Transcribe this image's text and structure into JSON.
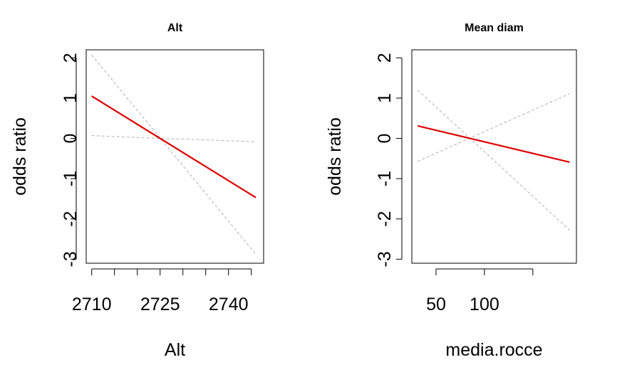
{
  "chart_data": [
    {
      "type": "line",
      "title": "Alt",
      "xlabel": "Alt",
      "ylabel": "odds ratio",
      "xlim": [
        2708.8,
        2747.7
      ],
      "ylim": [
        -3.1,
        2.2
      ],
      "x_ticks": [
        2710,
        2715,
        2720,
        2725,
        2730,
        2735,
        2740,
        2745
      ],
      "x_tick_labels": [
        "2710",
        "",
        "",
        "2725",
        "",
        "",
        "2740",
        ""
      ],
      "y_ticks": [
        2,
        1,
        0,
        -1,
        -2,
        -3
      ],
      "y_tick_labels": [
        "2",
        "1",
        "0",
        "-1",
        "-2",
        "-3"
      ],
      "grid": false,
      "series": [
        {
          "role": "estimate",
          "color": "#dd0000",
          "style": "solid",
          "x": [
            2710,
            2746
          ],
          "y": [
            1.05,
            -1.47
          ]
        },
        {
          "role": "upper-ci",
          "color": "#b0b0b0",
          "style": "dashed",
          "x": [
            2710,
            2746
          ],
          "y": [
            2.07,
            -2.88
          ]
        },
        {
          "role": "lower-ci",
          "color": "#b0b0b0",
          "style": "dashed",
          "x": [
            2710,
            2725,
            2746
          ],
          "y": [
            0.07,
            0.0,
            -0.08
          ]
        }
      ]
    },
    {
      "type": "line",
      "title": "Mean diam",
      "xlabel": "media.rocce",
      "ylabel": "odds ratio",
      "xlim": [
        25,
        195
      ],
      "ylim": [
        -3.1,
        2.2
      ],
      "x_ticks": [
        50,
        100,
        150
      ],
      "x_tick_labels": [
        "50",
        "100",
        ""
      ],
      "y_ticks": [
        2,
        1,
        0,
        -1,
        -2,
        -3
      ],
      "y_tick_labels": [
        "2",
        "1",
        "0",
        "-1",
        "-2",
        "-3"
      ],
      "grid": false,
      "series": [
        {
          "role": "estimate",
          "color": "#dd0000",
          "style": "solid",
          "x": [
            31,
            188
          ],
          "y": [
            0.31,
            -0.59
          ]
        },
        {
          "role": "upper-ci",
          "color": "#b0b0b0",
          "style": "dashed",
          "x": [
            31,
            188
          ],
          "y": [
            1.2,
            -2.28
          ]
        },
        {
          "role": "lower-ci",
          "color": "#b0b0b0",
          "style": "dashed",
          "x": [
            31,
            188
          ],
          "y": [
            -0.57,
            1.11
          ]
        }
      ]
    }
  ]
}
